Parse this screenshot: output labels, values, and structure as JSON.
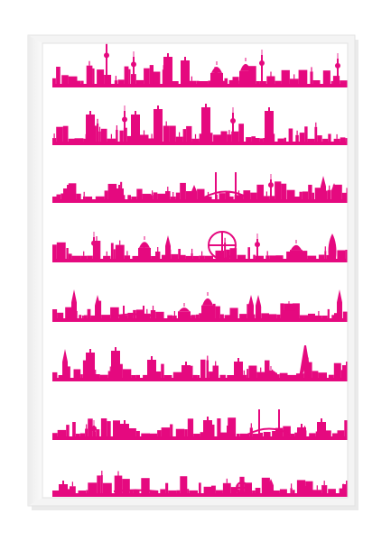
{
  "artwork": {
    "ink_color": "#e5097f",
    "paper_color": "#ffffff",
    "frame_color": "#f4f4f4",
    "frame_edge_color": "#e2e2e2",
    "rows": [
      {
        "skyline": "berlin"
      },
      {
        "skyline": "frankfurt"
      },
      {
        "skyline": "hamburg"
      },
      {
        "skyline": "london-istanbul"
      },
      {
        "skyline": "cologne-munich"
      },
      {
        "skyline": "new-york-paris"
      },
      {
        "skyline": "ruhr-san-francisco"
      },
      {
        "skyline": "cut-off-bottom"
      }
    ]
  }
}
